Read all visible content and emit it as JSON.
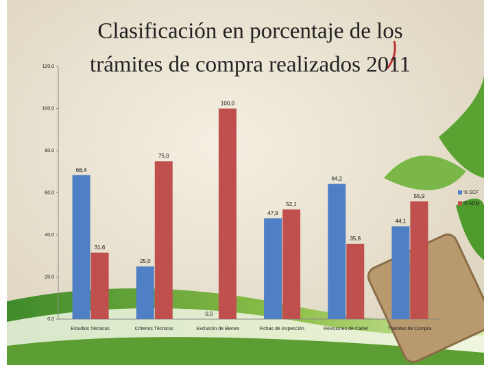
{
  "chart_data": {
    "type": "bar",
    "title": [
      "Clasificación en porcentaje de  los",
      "trámites de compra realizados 2011"
    ],
    "categories": [
      "Estudios Técnicos",
      "Criterios Técnicos",
      "Exclusión de Bienes",
      "Fichas de inspección",
      "Revisiones de Cartel",
      "Trámites de Compra"
    ],
    "series": [
      {
        "name": "% SCF",
        "color": "#4f7fc4",
        "values": [
          68.4,
          25.0,
          0.0,
          47.9,
          64.2,
          44.1
        ],
        "value_labels": [
          "68,4",
          "25,0",
          "0,0",
          "47,9",
          "64,2",
          "44,1"
        ]
      },
      {
        "name": "% ADM",
        "color": "#c0504d",
        "values": [
          31.6,
          75.0,
          100.0,
          52.1,
          35.8,
          55.9
        ],
        "value_labels": [
          "31,6",
          "75,0",
          "100,0",
          "52,1",
          "35,8",
          "55,9"
        ]
      }
    ],
    "ylim": [
      0,
      120
    ],
    "yticks": [
      {
        "value": 0,
        "label": "0,0"
      },
      {
        "value": 20,
        "label": "20,0"
      },
      {
        "value": 40,
        "label": "40,0"
      },
      {
        "value": 60,
        "label": "60,0"
      },
      {
        "value": 80,
        "label": "80,0"
      },
      {
        "value": 100,
        "label": "100,0"
      },
      {
        "value": 120,
        "label": "120,0"
      }
    ],
    "legend": "right",
    "grid": false
  }
}
